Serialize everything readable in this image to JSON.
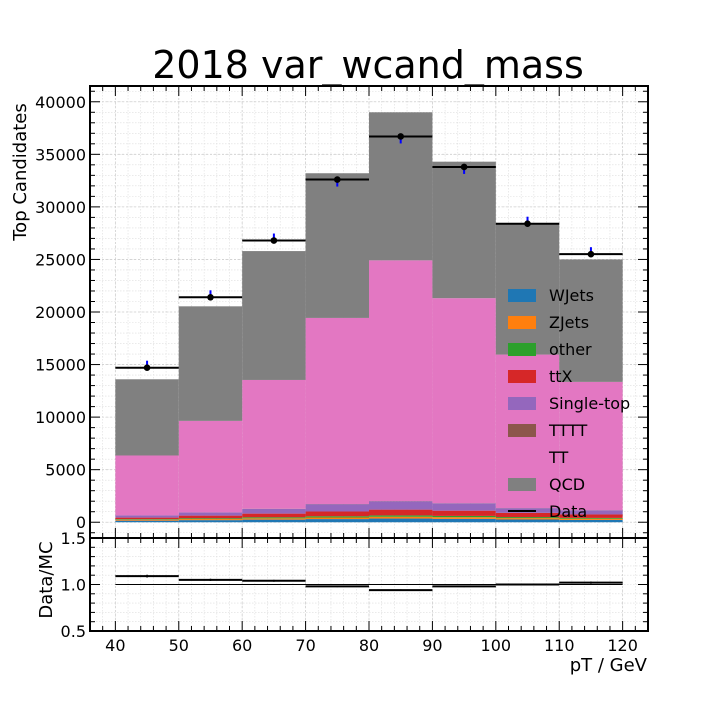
{
  "chart_data": {
    "type": "bar",
    "title": "2018 var_wcand_mass",
    "xlabel": "pT / GeV",
    "ylabel": "Top Candidates",
    "ratio_ylabel": "Data/MC",
    "x_edges": [
      40,
      50,
      60,
      70,
      80,
      90,
      100,
      110,
      120
    ],
    "x_ticks": [
      "40",
      "50",
      "60",
      "70",
      "80",
      "90",
      "100",
      "110",
      "120"
    ],
    "xlim": [
      36,
      124
    ],
    "ylim": [
      -1500,
      41500
    ],
    "y_ticks": [
      "0",
      "5000",
      "10000",
      "15000",
      "20000",
      "25000",
      "30000",
      "35000",
      "40000"
    ],
    "ratio_ylim": [
      0.5,
      1.5
    ],
    "ratio_ticks": [
      "0.5",
      "1.0",
      "1.5"
    ],
    "grid": true,
    "legend_position": "right",
    "series": [
      {
        "name": "WJets",
        "color": "#1f77b4",
        "values": [
          150,
          200,
          250,
          300,
          350,
          320,
          260,
          220
        ]
      },
      {
        "name": "ZJets",
        "color": "#ff7f0e",
        "values": [
          80,
          100,
          120,
          150,
          170,
          160,
          130,
          110
        ]
      },
      {
        "name": "other",
        "color": "#2ca02c",
        "values": [
          60,
          80,
          100,
          120,
          130,
          120,
          100,
          80
        ]
      },
      {
        "name": "ttX",
        "color": "#d62728",
        "values": [
          150,
          250,
          350,
          450,
          550,
          500,
          400,
          330
        ]
      },
      {
        "name": "Single-top",
        "color": "#9467bd",
        "values": [
          200,
          300,
          450,
          700,
          800,
          700,
          450,
          400
        ]
      },
      {
        "name": "TTTT",
        "color": "#8c564b",
        "values": [
          10,
          10,
          15,
          15,
          15,
          15,
          10,
          10
        ]
      },
      {
        "name": "TT",
        "color": "#e377c2",
        "values": [
          5700,
          8700,
          12250,
          17700,
          22900,
          19500,
          14600,
          12200
        ]
      },
      {
        "name": "QCD",
        "color": "#808080",
        "values": [
          7250,
          10900,
          12260,
          13765,
          14085,
          12985,
          12450,
          11650
        ]
      }
    ],
    "data": {
      "name": "Data",
      "color": "#000000",
      "values": [
        14700,
        21400,
        26800,
        32600,
        36700,
        33800,
        28400,
        25500
      ],
      "errors": [
        120,
        150,
        170,
        180,
        190,
        185,
        170,
        160
      ]
    },
    "mc_uncertainty_color": "#0000ff",
    "ratio": {
      "values": [
        1.09,
        1.05,
        1.04,
        0.98,
        0.94,
        0.98,
        1.0,
        1.02
      ],
      "errors": [
        0.015,
        0.012,
        0.01,
        0.008,
        0.008,
        0.008,
        0.01,
        0.012
      ]
    }
  }
}
